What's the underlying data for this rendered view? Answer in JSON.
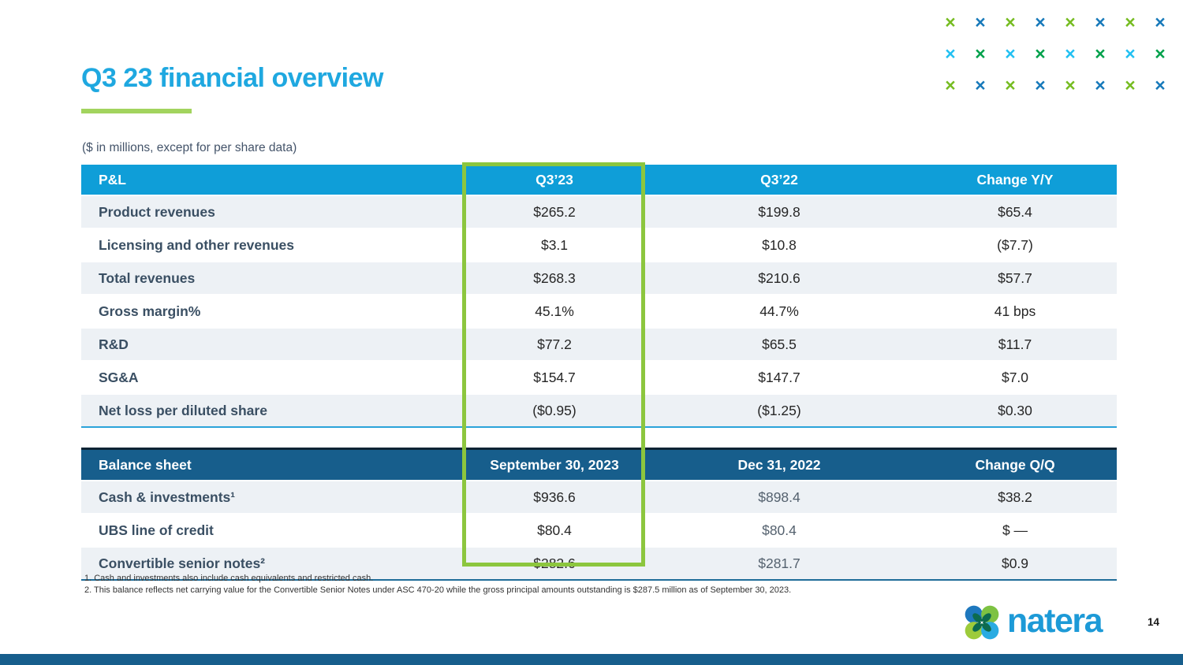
{
  "slide": {
    "title": "Q3 23 financial overview",
    "subtitle": "($ in millions, except for per share data)",
    "page_number": "14"
  },
  "colors": {
    "title_blue": "#1FA8E0",
    "underline_green": "#A2D45E",
    "pl_header_blue": "#0F9ED8",
    "bs_header_navy": "#175E8C",
    "row_alt_gray": "#EDF1F5",
    "highlight_green": "#8CC63E",
    "bottom_bar_navy": "#175E8C"
  },
  "x_pattern": {
    "glyph": "×",
    "palette": {
      "green": "#76BC21",
      "blue": "#1779BA",
      "cyan": "#22C0F2",
      "dark_green": "#00A14B"
    },
    "rows": [
      [
        "green",
        "blue",
        "green",
        "blue",
        "green",
        "blue",
        "green",
        "blue"
      ],
      [
        "cyan",
        "dark_green",
        "cyan",
        "dark_green",
        "cyan",
        "dark_green",
        "cyan",
        "dark_green"
      ],
      [
        "green",
        "blue",
        "green",
        "blue",
        "green",
        "blue",
        "green",
        "blue"
      ]
    ]
  },
  "pl_table": {
    "headers": [
      "P&L",
      "Q3’23",
      "Q3’22",
      "Change Y/Y"
    ],
    "rows": [
      {
        "label": "Product revenues",
        "q3_23": "$265.2",
        "q3_22": "$199.8",
        "change": "$65.4"
      },
      {
        "label": "Licensing and other revenues",
        "q3_23": "$3.1",
        "q3_22": "$10.8",
        "change": "($7.7)"
      },
      {
        "label": "Total revenues",
        "q3_23": "$268.3",
        "q3_22": "$210.6",
        "change": "$57.7"
      },
      {
        "label": "Gross margin%",
        "q3_23": "45.1%",
        "q3_22": "44.7%",
        "change": "41 bps"
      },
      {
        "label": "R&D",
        "q3_23": "$77.2",
        "q3_22": "$65.5",
        "change": "$11.7"
      },
      {
        "label": "SG&A",
        "q3_23": "$154.7",
        "q3_22": "$147.7",
        "change": "$7.0"
      },
      {
        "label": "Net loss per diluted share",
        "q3_23": "($0.95)",
        "q3_22": "($1.25)",
        "change": "$0.30"
      }
    ]
  },
  "bs_table": {
    "headers": [
      "Balance sheet",
      "September 30, 2023",
      "Dec 31, 2022",
      "Change Q/Q"
    ],
    "rows": [
      {
        "label": "Cash & investments¹",
        "sep30": "$936.6",
        "dec31": "$898.4",
        "change": "$38.2"
      },
      {
        "label": "UBS line of credit",
        "sep30": "$80.4",
        "dec31": "$80.4",
        "change": "$ —"
      },
      {
        "label": "Convertible senior notes²",
        "sep30": "$282.6",
        "dec31": "$281.7",
        "change": "$0.9"
      }
    ]
  },
  "footnotes": [
    "1. Cash and investments also include cash equivalents and restricted cash.",
    "2. This balance reflects net carrying value for the Convertible Senior Notes under ASC 470-20 while the gross principal amounts outstanding is $287.5 million as of September 30, 2023."
  ],
  "logo": {
    "text": "natera"
  }
}
